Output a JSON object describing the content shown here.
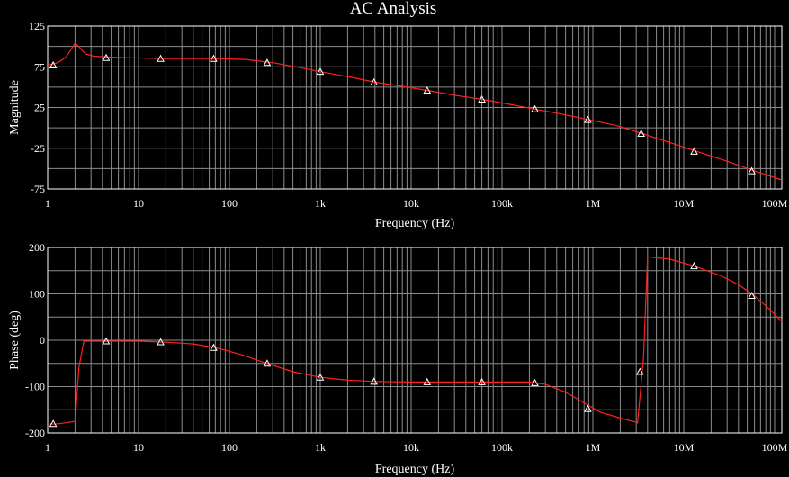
{
  "window": {
    "title": "AC Analysis"
  },
  "colors": {
    "background": "#000000",
    "grid": "#8c8c8c",
    "frame": "#ffffff",
    "trace": "#ff2020",
    "marker": "#ffffff",
    "text": "#ffffff"
  },
  "chart_data": [
    {
      "type": "line",
      "title": "AC Analysis",
      "xlabel": "Frequency (Hz)",
      "ylabel": "Magnitude",
      "x_scale": "log",
      "xlim": [
        1,
        120000000
      ],
      "ylim": [
        -75,
        125
      ],
      "x_ticks": [
        1,
        10,
        100,
        1000,
        10000,
        100000,
        1000000,
        10000000,
        100000000
      ],
      "x_tick_labels": [
        "1",
        "10",
        "100",
        "1k",
        "10k",
        "100k",
        "1M",
        "10M",
        "100M"
      ],
      "y_ticks": [
        125,
        75,
        25,
        -25,
        -75
      ],
      "y_tick_labels": [
        "125",
        "75",
        "25",
        "-25",
        "-75"
      ],
      "grid": true,
      "series": [
        {
          "x": [
            1,
            1.3,
            1.6,
            1.8,
            2,
            2.2,
            2.6,
            3.2,
            4.5,
            8,
            20,
            70,
            150,
            300,
            600,
            1000,
            2000,
            4000,
            8000,
            15000,
            30000,
            60000,
            120000,
            230000,
            450000,
            900000,
            1800000,
            3500000,
            7000000,
            14000000,
            30000000,
            60000000,
            120000000
          ],
          "y": [
            77,
            80,
            87,
            96,
            104,
            100,
            91,
            88,
            87,
            86,
            85,
            85,
            84,
            80,
            74,
            69,
            63,
            56,
            51,
            46,
            40,
            35,
            29,
            23,
            17,
            10,
            3,
            -7,
            -18,
            -29,
            -41,
            -53,
            -64
          ],
          "markers_x": [
            1.15,
            4.4,
            17.5,
            67,
            260,
            1000,
            3900,
            15000,
            60000,
            230000,
            880000,
            3400000,
            13000000,
            56000000
          ],
          "markers_y": [
            77,
            86,
            85,
            85,
            80,
            69,
            56,
            46,
            35,
            23,
            10,
            -7,
            -29,
            -53
          ]
        }
      ]
    },
    {
      "type": "line",
      "xlabel": "Frequency (Hz)",
      "ylabel": "Phase (deg)",
      "x_scale": "log",
      "xlim": [
        1,
        120000000
      ],
      "ylim": [
        -200,
        200
      ],
      "x_ticks": [
        1,
        10,
        100,
        1000,
        10000,
        100000,
        1000000,
        10000000,
        100000000
      ],
      "x_tick_labels": [
        "1",
        "10",
        "100",
        "1k",
        "10k",
        "100k",
        "1M",
        "10M",
        "100M"
      ],
      "y_ticks": [
        200,
        100,
        0,
        -100,
        -200
      ],
      "y_tick_labels": [
        "200",
        "100",
        "0",
        "-100",
        "-200"
      ],
      "grid": true,
      "series": [
        {
          "x": [
            1,
            1.2,
            1.6,
            2,
            2.05,
            2.2,
            2.5,
            3.5,
            5,
            10,
            20,
            40,
            70,
            130,
            260,
            500,
            1000,
            2000,
            4000,
            10000,
            30000,
            100000,
            200000,
            300000,
            500000,
            800000,
            1200000,
            2000000,
            3000000,
            3100000,
            3300000,
            3600000,
            4000000,
            7000000,
            13000000,
            25000000,
            40000000,
            60000000,
            90000000,
            120000000
          ],
          "y": [
            -180,
            -181,
            -178,
            -175,
            -150,
            -60,
            -2,
            -2,
            -2,
            -2,
            -4,
            -8,
            -16,
            -30,
            -50,
            -68,
            -80,
            -86,
            -89,
            -90,
            -90,
            -90,
            -90,
            -95,
            -112,
            -135,
            -155,
            -168,
            -177,
            -178,
            -120,
            -40,
            180,
            175,
            160,
            140,
            120,
            96,
            65,
            40
          ],
          "markers_x": [
            1.15,
            4.4,
            17.5,
            67,
            260,
            1000,
            3900,
            15000,
            60000,
            230000,
            880000,
            3300000,
            13000000,
            56000000
          ],
          "markers_y": [
            -180,
            -2,
            -4,
            -16,
            -50,
            -80,
            -89,
            -90,
            -90,
            -92,
            -148,
            -68,
            160,
            96
          ]
        }
      ]
    }
  ]
}
